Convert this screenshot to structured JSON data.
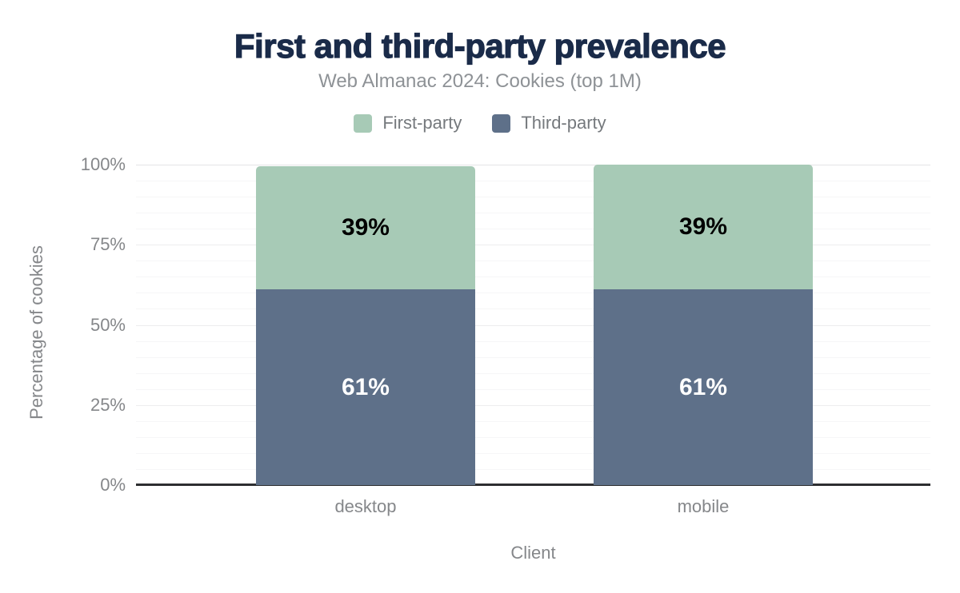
{
  "chart_data": {
    "type": "bar",
    "stacked": true,
    "title": "First and third-party prevalence",
    "subtitle": "Web Almanac 2024: Cookies (top 1M)",
    "xlabel": "Client",
    "ylabel": "Percentage of cookies",
    "categories": [
      "desktop",
      "mobile"
    ],
    "series": [
      {
        "name": "First-party",
        "color": "#a7cab6",
        "values": [
          39,
          39
        ],
        "labels": [
          "39%",
          "39%"
        ],
        "label_color": "#000000"
      },
      {
        "name": "Third-party",
        "color": "#5e7089",
        "values": [
          61,
          61
        ],
        "labels": [
          "61%",
          "61%"
        ],
        "label_color": "#ffffff"
      }
    ],
    "bar_top_pct": [
      99.5,
      99.9
    ],
    "ylim": [
      0,
      100
    ],
    "ytick_values": [
      0,
      25,
      50,
      75,
      100
    ],
    "ytick_labels": [
      "0%",
      "25%",
      "50%",
      "75%",
      "100%"
    ],
    "minor_grid_step": 5,
    "grid": "horizontal",
    "legend_position": "top"
  },
  "colors": {
    "title": "#1a2b49",
    "subtitle": "#8e9296",
    "axis_text": "#85878a",
    "legend_text": "#75797d",
    "axis_line": "#2d2e30",
    "first_party": "#a7cab6",
    "third_party": "#5e7089",
    "background": "#ffffff"
  }
}
